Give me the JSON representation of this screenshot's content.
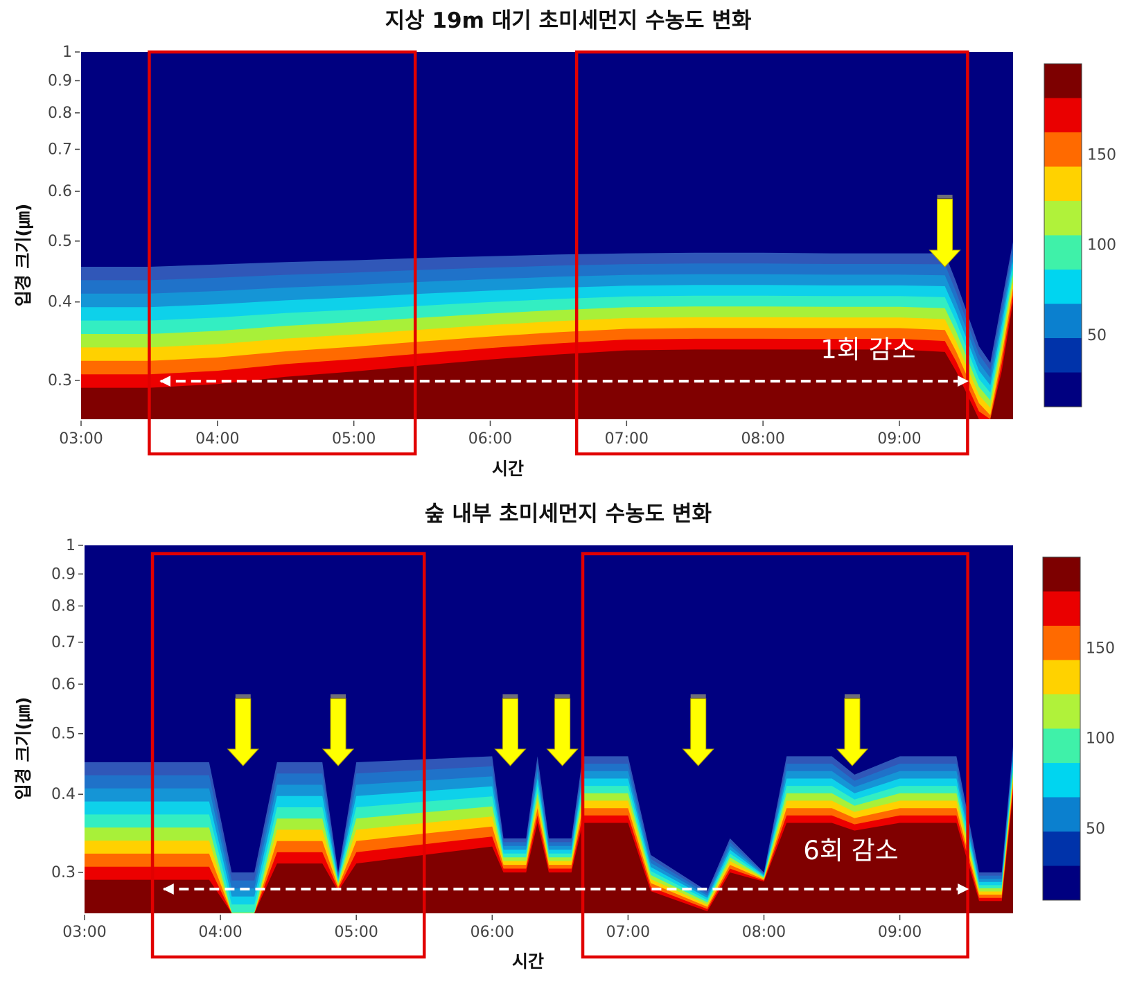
{
  "chart_data": [
    {
      "type": "heatmap",
      "title": "지상 19m 대기 초미세먼지 수농도 변화",
      "xlabel": "시간",
      "ylabel": "입경 크기(㎛)",
      "x_ticks": [
        "03:00",
        "04:00",
        "05:00",
        "06:00",
        "07:00",
        "08:00",
        "09:00"
      ],
      "y_ticks": [
        "1",
        "0.9",
        "0.8",
        "0.7",
        "0.6",
        "0.5",
        "0.4",
        "0.3"
      ],
      "y_scale": "log",
      "colorbar_ticks": [
        "150",
        "100",
        "50"
      ],
      "annotation": "1회 감소",
      "highlight_boxes": [
        [
          "03:30",
          "05:27"
        ],
        [
          "06:38",
          "09:30"
        ]
      ],
      "drop_events": [
        "09:20"
      ],
      "layer_profile": [
        [
          "03:00",
          0.455,
          0.292
        ],
        [
          "03:30",
          0.455,
          0.292
        ],
        [
          "04:00",
          0.459,
          0.296
        ],
        [
          "04:30",
          0.463,
          0.304
        ],
        [
          "05:00",
          0.466,
          0.31
        ],
        [
          "05:30",
          0.47,
          0.317
        ],
        [
          "06:00",
          0.473,
          0.324
        ],
        [
          "06:30",
          0.476,
          0.33
        ],
        [
          "07:00",
          0.478,
          0.335
        ],
        [
          "07:30",
          0.479,
          0.336
        ],
        [
          "08:00",
          0.479,
          0.336
        ],
        [
          "08:30",
          0.478,
          0.336
        ],
        [
          "09:00",
          0.478,
          0.336
        ],
        [
          "09:20",
          0.478,
          0.333
        ],
        [
          "09:25",
          0.43,
          0.31
        ],
        [
          "09:35",
          0.34,
          0.26
        ],
        [
          "09:40",
          0.32,
          0.25
        ],
        [
          "09:45",
          0.4,
          0.31
        ],
        [
          "09:50",
          0.5,
          0.4
        ]
      ]
    },
    {
      "type": "heatmap",
      "title": "숲 내부 초미세먼지 수농도 변화",
      "xlabel": "시간",
      "ylabel": "입경 크기(㎛)",
      "x_ticks": [
        "03:00",
        "04:00",
        "05:00",
        "06:00",
        "07:00",
        "08:00",
        "09:00"
      ],
      "y_ticks": [
        "1",
        "0.9",
        "0.8",
        "0.7",
        "0.6",
        "0.5",
        "0.4",
        "0.3"
      ],
      "y_scale": "log",
      "colorbar_ticks": [
        "150",
        "100",
        "50"
      ],
      "annotation": "6회 감소",
      "highlight_boxes": [
        [
          "03:30",
          "05:30"
        ],
        [
          "06:40",
          "09:30"
        ]
      ],
      "drop_events": [
        "04:10",
        "04:52",
        "06:08",
        "06:31",
        "07:31",
        "08:39"
      ],
      "layer_profile": [
        [
          "03:00",
          0.45,
          0.292
        ],
        [
          "03:55",
          0.45,
          0.292
        ],
        [
          "04:05",
          0.3,
          0.23
        ],
        [
          "04:15",
          0.3,
          0.23
        ],
        [
          "04:25",
          0.45,
          0.31
        ],
        [
          "04:45",
          0.45,
          0.31
        ],
        [
          "04:52",
          0.3,
          0.28
        ],
        [
          "05:00",
          0.45,
          0.31
        ],
        [
          "05:30",
          0.455,
          0.32
        ],
        [
          "06:00",
          0.46,
          0.33
        ],
        [
          "06:05",
          0.34,
          0.3
        ],
        [
          "06:15",
          0.34,
          0.3
        ],
        [
          "06:20",
          0.46,
          0.36
        ],
        [
          "06:25",
          0.34,
          0.3
        ],
        [
          "06:35",
          0.34,
          0.3
        ],
        [
          "06:40",
          0.46,
          0.36
        ],
        [
          "07:00",
          0.46,
          0.36
        ],
        [
          "07:10",
          0.32,
          0.28
        ],
        [
          "07:35",
          0.28,
          0.26
        ],
        [
          "07:45",
          0.34,
          0.3
        ],
        [
          "08:00",
          0.3,
          0.29
        ],
        [
          "08:10",
          0.46,
          0.36
        ],
        [
          "08:30",
          0.46,
          0.36
        ],
        [
          "08:40",
          0.43,
          0.35
        ],
        [
          "09:00",
          0.46,
          0.36
        ],
        [
          "09:25",
          0.46,
          0.36
        ],
        [
          "09:35",
          0.3,
          0.27
        ],
        [
          "09:45",
          0.3,
          0.27
        ],
        [
          "09:50",
          0.48,
          0.4
        ]
      ]
    }
  ]
}
